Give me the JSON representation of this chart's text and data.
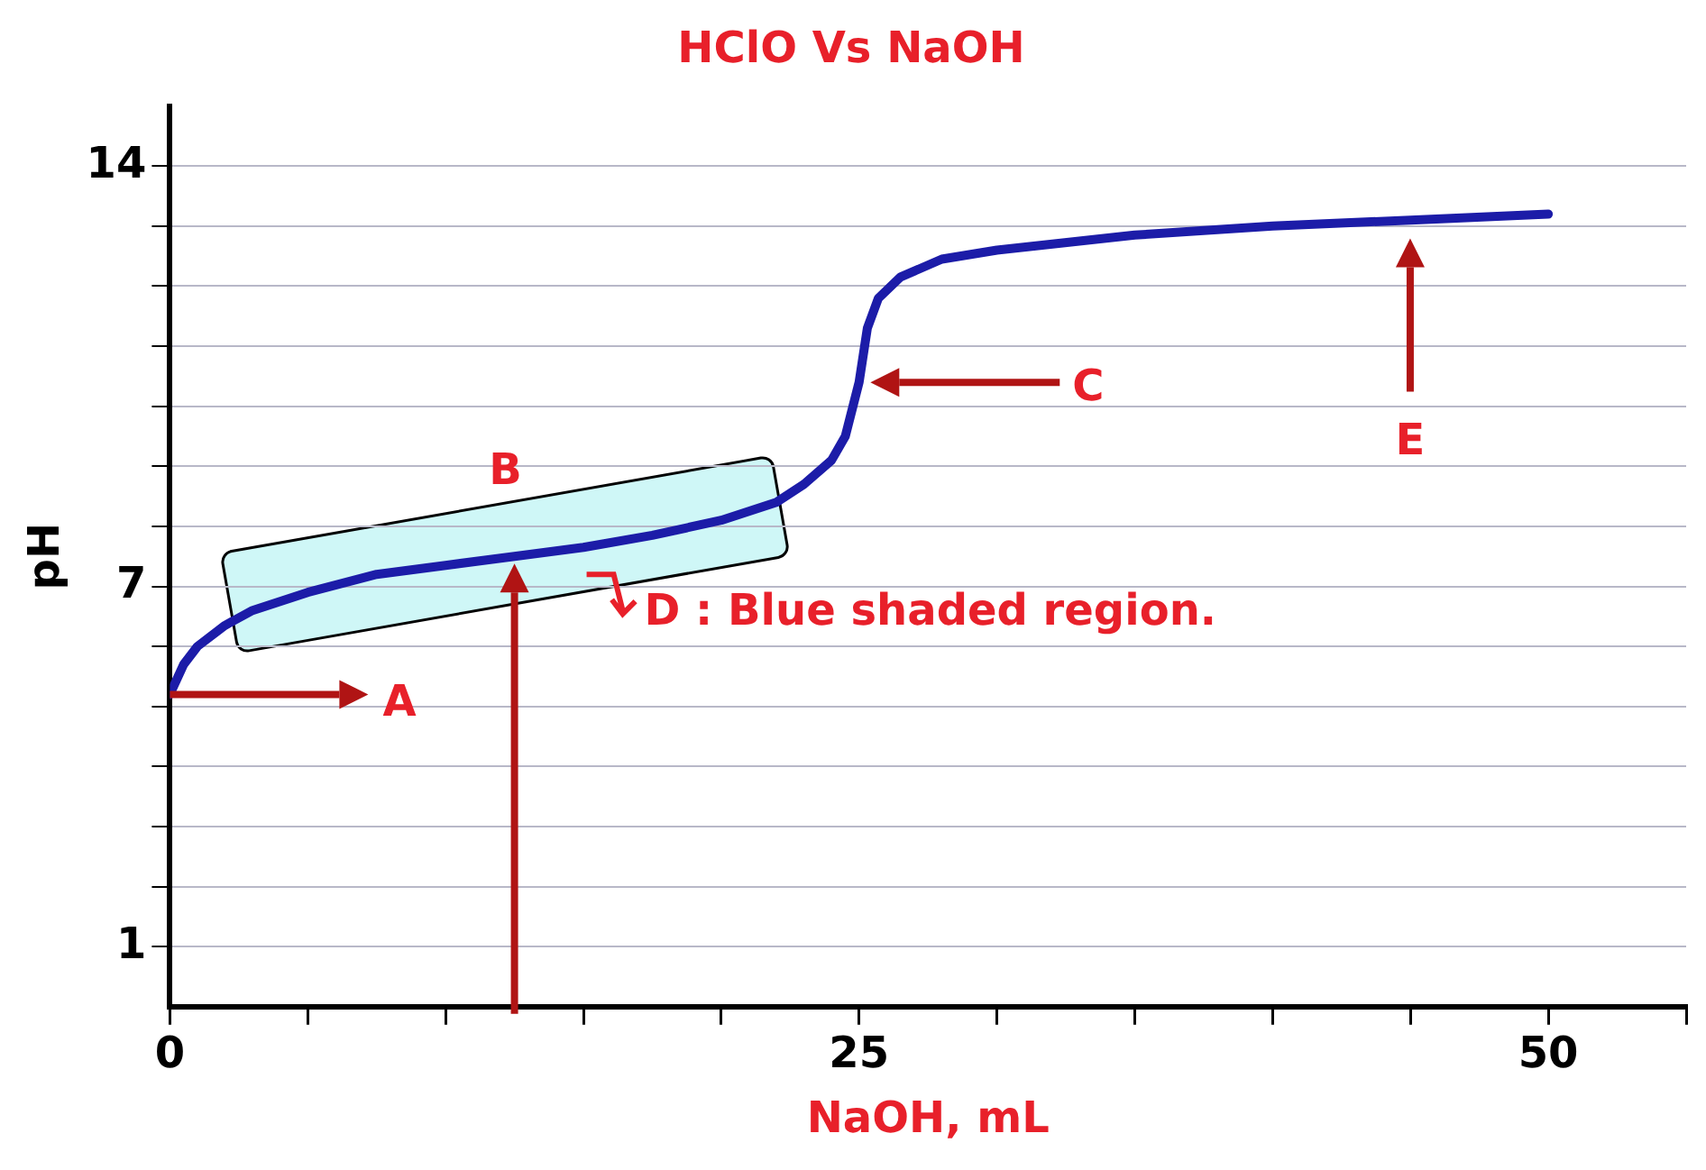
{
  "chart_data": {
    "type": "line",
    "title": "HClO Vs NaOH",
    "xlabel": "NaOH, mL",
    "ylabel": "pH",
    "x": [
      0,
      0.5,
      1,
      2,
      3,
      5,
      7.5,
      10,
      12.5,
      15,
      17.5,
      20,
      22,
      23,
      24,
      24.5,
      25,
      25.3,
      25.7,
      26.5,
      28,
      30,
      35,
      40,
      45,
      50
    ],
    "values": [
      5.2,
      5.7,
      6.0,
      6.35,
      6.6,
      6.9,
      7.2,
      7.35,
      7.5,
      7.65,
      7.85,
      8.1,
      8.4,
      8.7,
      9.1,
      9.5,
      10.4,
      11.3,
      11.8,
      12.15,
      12.45,
      12.6,
      12.85,
      13.0,
      13.1,
      13.2
    ],
    "color": "#1c1ca8",
    "marker": "none",
    "line_style": "solid",
    "legend": false,
    "grid": "y",
    "xlim": [
      0,
      55
    ],
    "xticks": [
      0,
      {
        "value": 5,
        "label": null
      },
      {
        "value": 10,
        "label": null
      },
      {
        "value": 15,
        "label": null
      },
      {
        "value": 20,
        "label": null
      },
      25,
      {
        "value": 30,
        "label": null
      },
      {
        "value": 35,
        "label": null
      },
      {
        "value": 40,
        "label": null
      },
      {
        "value": 45,
        "label": null
      },
      50,
      {
        "value": 55,
        "label": null
      }
    ],
    "ylim": [
      0,
      15
    ],
    "yticks": [
      1,
      {
        "value": 2,
        "label": null
      },
      {
        "value": 3,
        "label": null
      },
      {
        "value": 4,
        "label": null
      },
      {
        "value": 5,
        "label": null
      },
      {
        "value": 6,
        "label": null
      },
      7,
      {
        "value": 8,
        "label": null
      },
      {
        "value": 9,
        "label": null
      },
      {
        "value": 10,
        "label": null
      },
      {
        "value": 11,
        "label": null
      },
      {
        "value": 12,
        "label": null
      },
      {
        "value": 13,
        "label": null
      },
      14
    ],
    "annotations": [
      {
        "text": "A",
        "x": 0,
        "y": 5.2
      },
      {
        "text": "B",
        "x": 12.5,
        "y": 7.5
      },
      "C",
      "D : Blue shaded region.",
      "E"
    ]
  }
}
